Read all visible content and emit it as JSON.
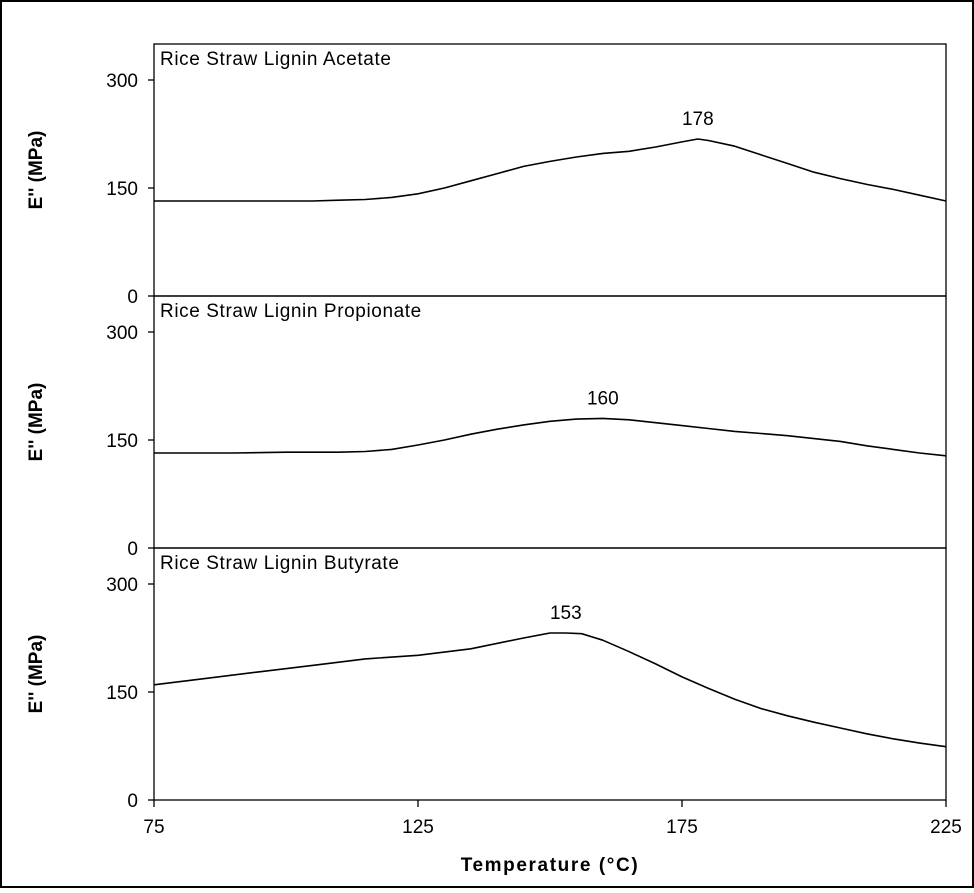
{
  "chart_data": {
    "type": "line",
    "x_axis": {
      "label": "Temperature (°C)",
      "range": [
        75,
        225
      ],
      "ticks": [
        75,
        125,
        175,
        225
      ],
      "tick_labels": [
        "75",
        "125",
        "175",
        "225"
      ]
    },
    "panels": [
      {
        "title": "Rice Straw Lignin Acetate",
        "ylabel": "E'' (MPa)",
        "ylim": [
          0,
          350
        ],
        "yticks": [
          0,
          150,
          300
        ],
        "ytick_labels": [
          "0",
          "150",
          "300"
        ],
        "peak": {
          "x": 178,
          "y": 218,
          "label": "178"
        },
        "series": {
          "x": [
            75,
            90,
            100,
            105,
            110,
            115,
            120,
            125,
            130,
            135,
            140,
            145,
            150,
            155,
            160,
            165,
            170,
            175,
            178,
            180,
            185,
            190,
            195,
            200,
            205,
            210,
            215,
            220,
            225
          ],
          "y": [
            132,
            132,
            132,
            132,
            133,
            134,
            137,
            142,
            150,
            160,
            170,
            180,
            187,
            193,
            198,
            201,
            207,
            214,
            218,
            216,
            208,
            196,
            184,
            172,
            163,
            155,
            148,
            140,
            132
          ]
        }
      },
      {
        "title": "Rice Straw Lignin Propionate",
        "ylabel": "E'' (MPa)",
        "ylim": [
          0,
          350
        ],
        "yticks": [
          0,
          150,
          300
        ],
        "ytick_labels": [
          "0",
          "150",
          "300"
        ],
        "peak": {
          "x": 160,
          "y": 180,
          "label": "160"
        },
        "series": {
          "x": [
            75,
            90,
            100,
            105,
            110,
            115,
            120,
            125,
            130,
            135,
            140,
            145,
            150,
            155,
            160,
            165,
            170,
            175,
            180,
            185,
            190,
            195,
            200,
            205,
            210,
            215,
            220,
            225
          ],
          "y": [
            132,
            132,
            133,
            133,
            133,
            134,
            137,
            143,
            150,
            158,
            165,
            171,
            176,
            179,
            180,
            178,
            174,
            170,
            166,
            162,
            159,
            156,
            152,
            148,
            142,
            137,
            132,
            128
          ]
        }
      },
      {
        "title": "Rice Straw Lignin Butyrate",
        "ylabel": "E'' (MPa)",
        "ylim": [
          0,
          350
        ],
        "yticks": [
          0,
          150,
          300
        ],
        "ytick_labels": [
          "0",
          "150",
          "300"
        ],
        "peak": {
          "x": 153,
          "y": 232,
          "label": "153"
        },
        "series": {
          "x": [
            75,
            85,
            95,
            105,
            115,
            125,
            135,
            145,
            150,
            153,
            156,
            160,
            165,
            170,
            175,
            180,
            185,
            190,
            195,
            200,
            205,
            210,
            215,
            220,
            225
          ],
          "y": [
            160,
            169,
            178,
            187,
            196,
            201,
            210,
            225,
            232,
            232,
            231,
            222,
            206,
            189,
            171,
            155,
            140,
            127,
            117,
            108,
            100,
            92,
            85,
            79,
            74
          ]
        }
      }
    ]
  }
}
